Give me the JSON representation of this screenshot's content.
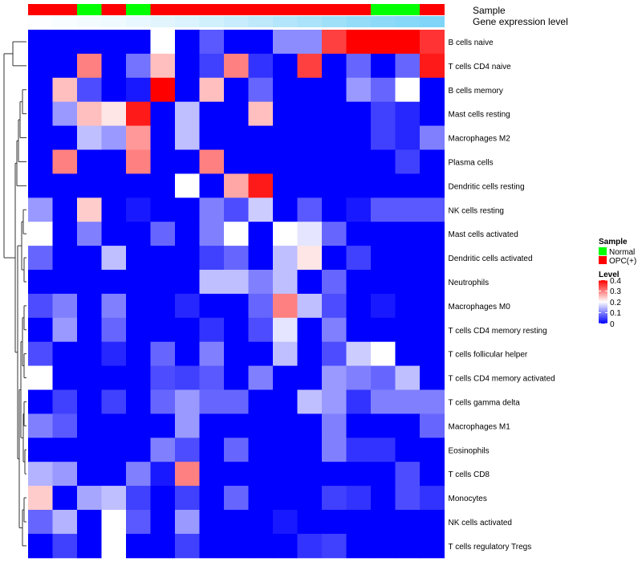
{
  "chart_data": {
    "type": "heatmap",
    "annotation_labels": [
      "Sample",
      "Gene expression level"
    ],
    "sample_groups": [
      "OPC(+)",
      "OPC(+)",
      "Normal",
      "OPC(+)",
      "Normal",
      "OPC(+)",
      "OPC(+)",
      "OPC(+)",
      "OPC(+)",
      "OPC(+)",
      "OPC(+)",
      "OPC(+)",
      "OPC(+)",
      "OPC(+)",
      "Normal",
      "Normal",
      "OPC(+)"
    ],
    "expression_level": [
      0.02,
      0.05,
      0.08,
      0.11,
      0.15,
      0.2,
      0.25,
      0.32,
      0.38,
      0.45,
      0.52,
      0.58,
      0.65,
      0.72,
      0.78,
      0.82,
      0.88
    ],
    "rows": [
      "B cells naive",
      "T cells CD4 naive",
      "B cells memory",
      "Mast cells resting",
      "Macrophages M2",
      "Plasma cells",
      "Dendritic cells resting",
      "NK cells resting",
      "Mast cells activated",
      "Dendritic cells activated",
      "Neutrophils",
      "Macrophages M0",
      "T cells CD4 memory resting",
      "T cells follicular helper",
      "T cells CD4 memory activated",
      "T cells gamma delta",
      "Macrophages M1",
      "Eosinophils",
      "T cells CD8",
      "Monocytes",
      "NK cells activated",
      "T cells regulatory  Tregs"
    ],
    "values": [
      [
        0,
        0,
        0,
        0,
        0,
        0.2,
        0,
        0.07,
        0,
        0,
        0.11,
        0.11,
        0.35,
        0.4,
        0.4,
        0.4,
        0.36
      ],
      [
        0,
        0,
        0.3,
        0,
        0.09,
        0.25,
        0,
        0.05,
        0.3,
        0.04,
        0,
        0.35,
        0,
        0.08,
        0,
        0.08,
        0.38
      ],
      [
        0,
        0.25,
        0.06,
        0,
        0.02,
        0.4,
        0,
        0.25,
        0,
        0.08,
        0,
        0,
        0,
        0.12,
        0.08,
        0.2,
        0
      ],
      [
        0,
        0.12,
        0.25,
        0.22,
        0.38,
        0,
        0.15,
        0,
        0,
        0.25,
        0,
        0,
        0,
        0,
        0.05,
        0.03,
        0
      ],
      [
        0,
        0,
        0.15,
        0.12,
        0.28,
        0,
        0.15,
        0,
        0,
        0,
        0,
        0,
        0,
        0,
        0.05,
        0.03,
        0.1
      ],
      [
        0,
        0.3,
        0,
        0,
        0.3,
        0,
        0,
        0.3,
        0,
        0,
        0,
        0,
        0,
        0,
        0,
        0.05,
        0
      ],
      [
        0,
        0,
        0,
        0,
        0,
        0,
        0.2,
        0,
        0.27,
        0.38,
        0,
        0,
        0,
        0,
        0,
        0,
        0
      ],
      [
        0.12,
        0,
        0.24,
        0,
        0.02,
        0,
        0,
        0.1,
        0.06,
        0.16,
        0,
        0.07,
        0,
        0.02,
        0.07,
        0.07,
        0.07
      ],
      [
        0.2,
        0,
        0.1,
        0,
        0,
        0.08,
        0,
        0.1,
        0.2,
        0,
        0.2,
        0.18,
        0.08,
        0,
        0,
        0,
        0
      ],
      [
        0.08,
        0,
        0,
        0.15,
        0,
        0,
        0,
        0.05,
        0.08,
        0,
        0.15,
        0.22,
        0,
        0.05,
        0,
        0,
        0
      ],
      [
        0,
        0,
        0,
        0,
        0,
        0,
        0,
        0.15,
        0.15,
        0.1,
        0.15,
        0,
        0.08,
        0,
        0,
        0,
        0
      ],
      [
        0.06,
        0.1,
        0,
        0.1,
        0,
        0,
        0.03,
        0,
        0,
        0.08,
        0.3,
        0.15,
        0.06,
        0,
        0.02,
        0,
        0
      ],
      [
        0,
        0.12,
        0,
        0.08,
        0,
        0,
        0,
        0.04,
        0,
        0.06,
        0.18,
        0,
        0.1,
        0,
        0,
        0,
        0
      ],
      [
        0.06,
        0,
        0,
        0.03,
        0,
        0.08,
        0,
        0.1,
        0,
        0,
        0.15,
        0,
        0.06,
        0.16,
        0.2,
        0,
        0
      ],
      [
        0.2,
        0,
        0,
        0,
        0,
        0.06,
        0.05,
        0.07,
        0,
        0.1,
        0,
        0,
        0.12,
        0.1,
        0.08,
        0.15,
        0
      ],
      [
        0,
        0.05,
        0,
        0.05,
        0,
        0.08,
        0.12,
        0.08,
        0.08,
        0,
        0,
        0.15,
        0.12,
        0.04,
        0.1,
        0.1,
        0.1
      ],
      [
        0.1,
        0.07,
        0,
        0,
        0,
        0,
        0.12,
        0,
        0,
        0,
        0,
        0,
        0.1,
        0,
        0,
        0,
        0.08
      ],
      [
        0,
        0,
        0,
        0,
        0,
        0.1,
        0.06,
        0,
        0.08,
        0,
        0,
        0,
        0.1,
        0.04,
        0.04,
        0,
        0
      ],
      [
        0.14,
        0.12,
        0,
        0,
        0.1,
        0.02,
        0.3,
        0,
        0,
        0,
        0,
        0,
        0,
        0,
        0,
        0.06,
        0
      ],
      [
        0.24,
        0,
        0.13,
        0.15,
        0.05,
        0,
        0.05,
        0,
        0.08,
        0,
        0,
        0,
        0.05,
        0.04,
        0,
        0.06,
        0.04
      ],
      [
        0.08,
        0.14,
        0,
        0.2,
        0.07,
        0,
        0.12,
        0,
        0,
        0,
        0.02,
        0,
        0,
        0,
        0,
        0,
        0
      ],
      [
        0,
        0.05,
        0,
        0.2,
        0,
        0,
        0.05,
        0,
        0,
        0,
        0,
        0.04,
        0.05,
        0,
        0,
        0,
        0
      ]
    ],
    "legends": [
      {
        "title": "Sample",
        "entries": [
          "Normal",
          "OPC(+)"
        ],
        "colors": {
          "Normal": "#00ff00",
          "OPC(+)": "#ff0000"
        }
      },
      {
        "title": "Level",
        "ticks": [
          "0",
          "0.1",
          "0.2",
          "0.3",
          "0.4"
        ],
        "range": [
          0,
          0.4
        ]
      }
    ],
    "color_scale": {
      "low": "#0000ff",
      "mid": "#ffffff",
      "high": "#ff0000",
      "range": [
        0,
        0.4
      ]
    },
    "annotation_gradient": {
      "low": "#ffffff",
      "high": "#6ccff6"
    },
    "row_dendrogram": true,
    "grid": false
  }
}
